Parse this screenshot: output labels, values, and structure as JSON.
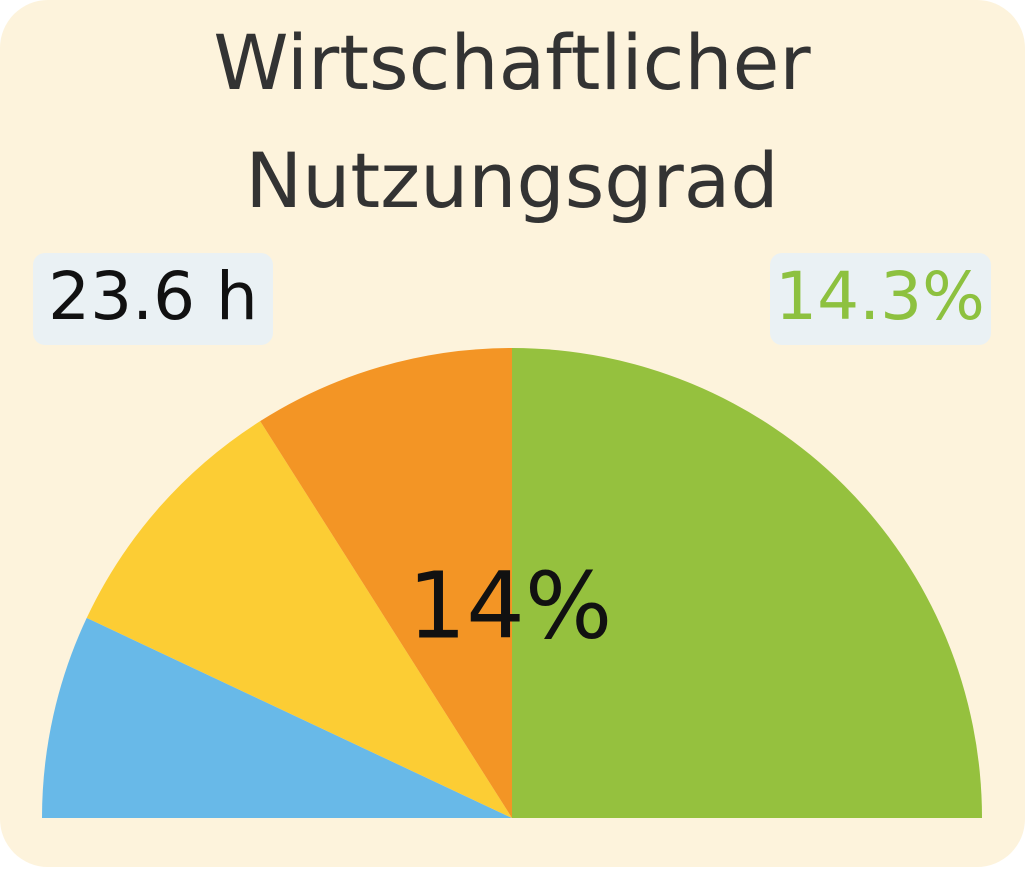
{
  "chart_data": {
    "type": "gauge",
    "title": [
      "Wirtschaftlicher",
      "Nutzungsgrad"
    ],
    "left_badge": "23.6 h",
    "right_badge": "14.3%",
    "center_label": "14%",
    "range": [
      0,
      100
    ],
    "segments": [
      {
        "color": "#68b9e8",
        "value": 14
      },
      {
        "color": "#fccd34",
        "value": 18
      },
      {
        "color": "#f39525",
        "value": 18
      },
      {
        "color": "#95c13e",
        "value": 50
      }
    ]
  }
}
